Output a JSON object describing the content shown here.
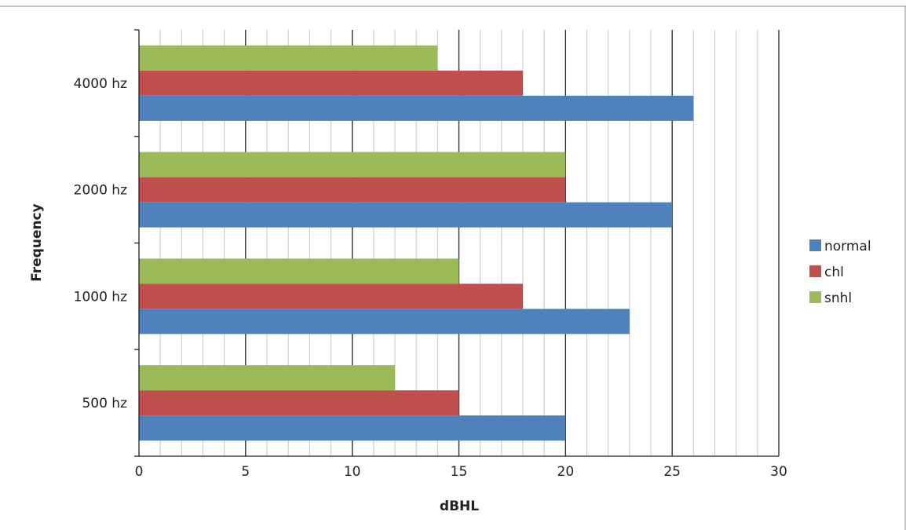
{
  "chart_data": {
    "type": "bar",
    "orientation": "horizontal",
    "categories": [
      "500 hz",
      "1000 hz",
      "2000 hz",
      "4000 hz"
    ],
    "series": [
      {
        "name": "normal",
        "color": "#4F81BD",
        "values": [
          20,
          23,
          25,
          26
        ]
      },
      {
        "name": "chl",
        "color": "#C0504D",
        "values": [
          15,
          18,
          20,
          18
        ]
      },
      {
        "name": "snhl",
        "color": "#9BBB59",
        "values": [
          12,
          15,
          20,
          14
        ]
      }
    ],
    "xlabel": "dBHL",
    "ylabel": "Frequency",
    "xlim": [
      0,
      30
    ],
    "x_ticks": [
      0,
      5,
      10,
      15,
      20,
      25,
      30
    ],
    "minor_tick_step": 1,
    "grid": true,
    "legend_position": "right"
  }
}
